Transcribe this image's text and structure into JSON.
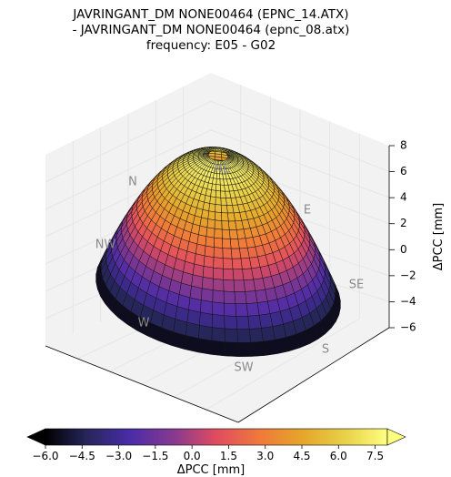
{
  "title": {
    "line1": "JAVRINGANT_DM NONE00464 (EPNC_14.ATX)",
    "line2": "- JAVRINGANT_DM NONE00464 (epnc_08.atx)",
    "line3": "frequency: E05 - G02"
  },
  "chart_data": {
    "type": "surface3d",
    "title": "JAVRINGANT_DM NONE00464 (EPNC_14.ATX) - JAVRINGANT_DM NONE00464 (epnc_08.atx) frequency: E05 - G02",
    "zlabel": "ΔPCC [mm]",
    "zlim": [
      -6,
      8
    ],
    "zticks": [
      "−6",
      "−4",
      "−2",
      "0",
      "2",
      "4",
      "6",
      "8"
    ],
    "direction_labels": [
      "N",
      "NE",
      "E",
      "SE",
      "S",
      "SW",
      "W",
      "NW"
    ],
    "colormap": "CMRmap",
    "surface": {
      "description_values": "dome-shaped PCC difference over the antenna hemisphere",
      "zenith_value": 8.0,
      "horizon_value": -6.0,
      "min": -6.0,
      "max": 8.0
    },
    "colorbar": {
      "label": "ΔPCC [mm]",
      "range": [
        -6.0,
        8.0
      ],
      "ticks": [
        "−6.0",
        "−4.5",
        "−3.0",
        "−1.5",
        "0.0",
        "1.5",
        "3.0",
        "4.5",
        "6.0",
        "7.5"
      ],
      "extend": "both"
    }
  }
}
